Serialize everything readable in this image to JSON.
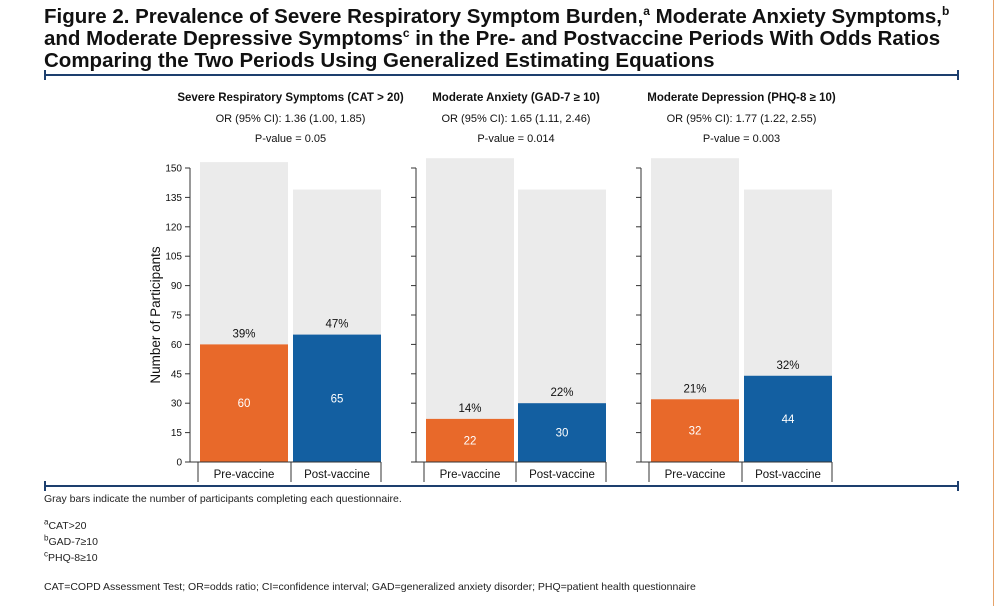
{
  "figure": {
    "title_line1_a": "Figure 2. Prevalence of Severe Respiratory Symptom Burden,",
    "title_sup_a": "a",
    "title_line1_b": " Moderate Anxiety Symptoms,",
    "title_sup_b": "b",
    "title_line2_a": "and Moderate Depressive Symptoms",
    "title_sup_c": "c",
    "title_line2_b": " in the Pre- and Postvaccine Periods With Odds Ratios",
    "title_line3": "Comparing the Two Periods Using Generalized Estimating Equations"
  },
  "colors": {
    "pre": "#e8692a",
    "post": "#135fa1",
    "total": "#ebebeb",
    "rule": "#1d3f6e"
  },
  "chart_data": [
    {
      "type": "bar",
      "title": "Severe Respiratory Symptoms (CAT > 20)",
      "or_text": "OR (95% CI): 1.36 (1.00, 1.85)",
      "p_text": "P-value = 0.05",
      "ylabel": "Number of Participants",
      "ylim": [
        0,
        150
      ],
      "yticks": [
        "0",
        "15",
        "30",
        "45",
        "60",
        "75",
        "90",
        "105",
        "120",
        "135",
        "150"
      ],
      "categories": [
        "Pre-vaccine",
        "Post-vaccine"
      ],
      "totals": [
        153,
        139
      ],
      "values": [
        60,
        65
      ],
      "value_labels": [
        "60",
        "65"
      ],
      "percent_labels": [
        "39%",
        "47%"
      ]
    },
    {
      "type": "bar",
      "title": "Moderate Anxiety (GAD-7 ≥ 10)",
      "or_text": "OR (95% CI): 1.65 (1.11, 2.46)",
      "p_text": "P-value = 0.014",
      "ylim": [
        0,
        150
      ],
      "categories": [
        "Pre-vaccine",
        "Post-vaccine"
      ],
      "totals": [
        155,
        139
      ],
      "values": [
        22,
        30
      ],
      "value_labels": [
        "22",
        "30"
      ],
      "percent_labels": [
        "14%",
        "22%"
      ]
    },
    {
      "type": "bar",
      "title": "Moderate Depression (PHQ-8 ≥ 10)",
      "or_text": "OR (95% CI): 1.77 (1.22, 2.55)",
      "p_text": "P-value = 0.003",
      "ylim": [
        0,
        150
      ],
      "categories": [
        "Pre-vaccine",
        "Post-vaccine"
      ],
      "totals": [
        155,
        139
      ],
      "values": [
        32,
        44
      ],
      "value_labels": [
        "32",
        "44"
      ],
      "percent_labels": [
        "21%",
        "32%"
      ]
    }
  ],
  "notes": {
    "gray": "Gray bars indicate the number of participants completing each questionnaire.",
    "fa_sup": "a",
    "fa_text": "CAT>20",
    "fb_sup": "b",
    "fb_text": "GAD-7≥10",
    "fc_sup": "c",
    "fc_text": "PHQ-8≥10",
    "abbrev": "CAT=COPD Assessment Test; OR=odds ratio; CI=confidence interval; GAD=generalized anxiety disorder; PHQ=patient health questionnaire"
  }
}
